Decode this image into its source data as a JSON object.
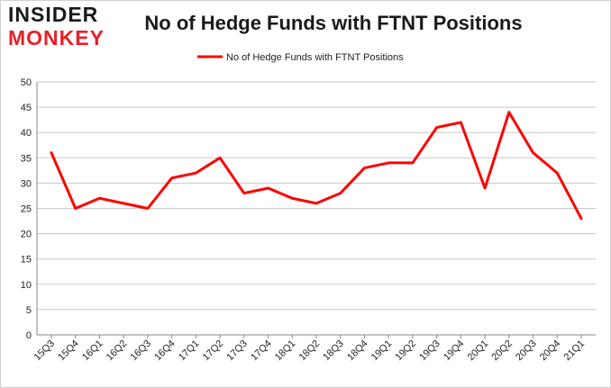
{
  "logo": {
    "top": "INSIDER",
    "bottom": "MONKEY"
  },
  "colors": {
    "series": "#ff0000",
    "grid": "#c8c8c8",
    "axis": "#888888"
  },
  "chart_data": {
    "type": "line",
    "title": "No of Hedge Funds with FTNT Positions",
    "xlabel": "",
    "ylabel": "",
    "ylim": [
      0,
      50
    ],
    "yticks": [
      0,
      5,
      10,
      15,
      20,
      25,
      30,
      35,
      40,
      45,
      50
    ],
    "grid": true,
    "legend_position": "top-center",
    "categories": [
      "15Q3",
      "15Q4",
      "16Q1",
      "16Q2",
      "16Q3",
      "16Q4",
      "17Q1",
      "17Q2",
      "17Q3",
      "17Q4",
      "18Q1",
      "18Q2",
      "18Q3",
      "18Q4",
      "19Q1",
      "19Q2",
      "19Q3",
      "19Q4",
      "20Q1",
      "20Q2",
      "20Q3",
      "20Q4",
      "21Q1"
    ],
    "series": [
      {
        "name": "No of Hedge Funds with FTNT Positions",
        "color": "#ff0000",
        "values": [
          36,
          25,
          27,
          26,
          25,
          31,
          32,
          35,
          28,
          29,
          27,
          26,
          28,
          33,
          34,
          34,
          41,
          42,
          29,
          44,
          36,
          32,
          23
        ]
      }
    ]
  }
}
